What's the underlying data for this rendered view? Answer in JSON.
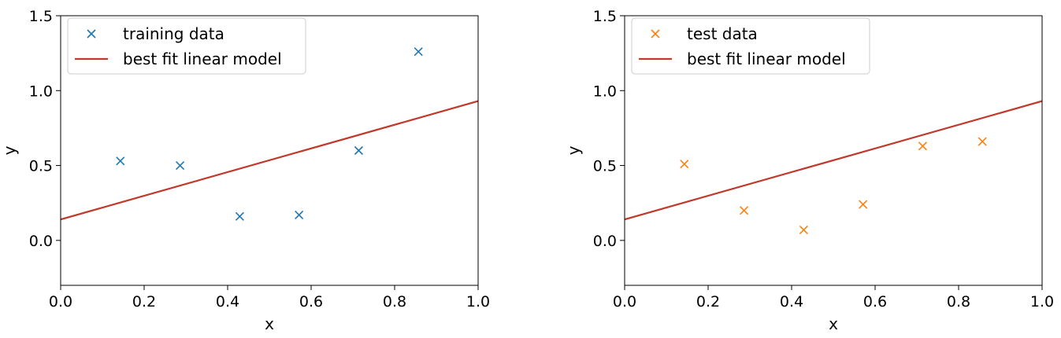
{
  "chart_data": [
    {
      "type": "scatter",
      "title": "",
      "xlabel": "x",
      "ylabel": "y",
      "xlim": [
        0.0,
        1.0
      ],
      "ylim": [
        -0.3,
        1.5
      ],
      "xticks": [
        "0.0",
        "0.2",
        "0.4",
        "0.6",
        "0.8",
        "1.0"
      ],
      "yticks": [
        "0.0",
        "0.5",
        "1.0",
        "1.5"
      ],
      "legend_position": "top-left",
      "series": [
        {
          "name": "training data",
          "kind": "scatter",
          "marker": "x",
          "color": "#1f77b4",
          "points": [
            {
              "x": 0.143,
              "y": 0.53
            },
            {
              "x": 0.286,
              "y": 0.5
            },
            {
              "x": 0.429,
              "y": 0.16
            },
            {
              "x": 0.571,
              "y": 0.17
            },
            {
              "x": 0.714,
              "y": 0.6
            },
            {
              "x": 0.857,
              "y": 1.26
            }
          ]
        },
        {
          "name": "best fit linear model",
          "kind": "line",
          "color": "#c0392b",
          "points": [
            {
              "x": 0.0,
              "y": 0.14
            },
            {
              "x": 1.0,
              "y": 0.93
            }
          ]
        }
      ]
    },
    {
      "type": "scatter",
      "title": "",
      "xlabel": "x",
      "ylabel": "y",
      "xlim": [
        0.0,
        1.0
      ],
      "ylim": [
        -0.3,
        1.5
      ],
      "xticks": [
        "0.0",
        "0.2",
        "0.4",
        "0.6",
        "0.8",
        "1.0"
      ],
      "yticks": [
        "0.0",
        "0.5",
        "1.0",
        "1.5"
      ],
      "legend_position": "top-left",
      "series": [
        {
          "name": "test data",
          "kind": "scatter",
          "marker": "x",
          "color": "#ff7f0e",
          "points": [
            {
              "x": 0.143,
              "y": 0.51
            },
            {
              "x": 0.286,
              "y": 0.2
            },
            {
              "x": 0.429,
              "y": 0.07
            },
            {
              "x": 0.571,
              "y": 0.24
            },
            {
              "x": 0.714,
              "y": 0.63
            },
            {
              "x": 0.857,
              "y": 0.66
            }
          ]
        },
        {
          "name": "best fit linear model",
          "kind": "line",
          "color": "#c0392b",
          "points": [
            {
              "x": 0.0,
              "y": 0.14
            },
            {
              "x": 1.0,
              "y": 0.93
            }
          ]
        }
      ]
    }
  ]
}
